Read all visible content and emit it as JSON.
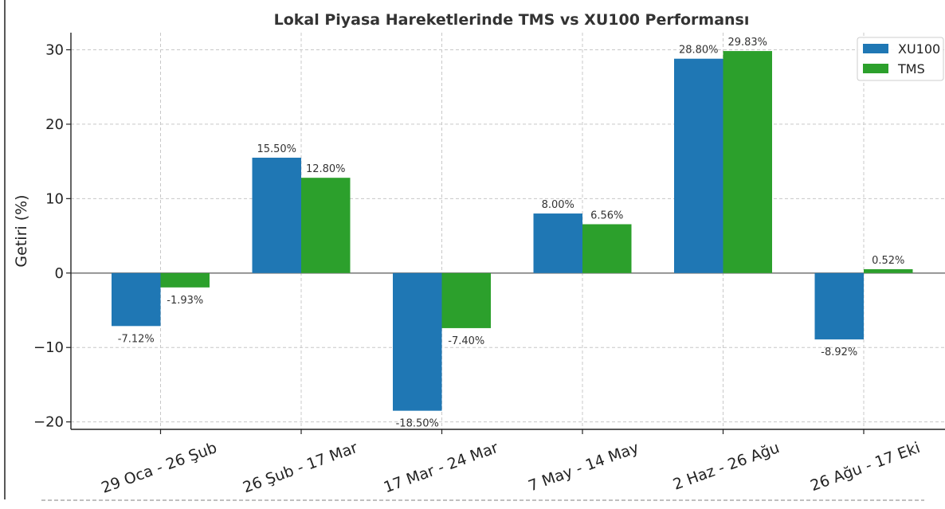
{
  "chart_data": {
    "type": "bar",
    "title": "Lokal Piyasa Hareketlerinde TMS vs XU100 Performansı",
    "xlabel": "",
    "ylabel": "Getiri (%)",
    "ylim": [
      -21,
      32.3
    ],
    "yticks": [
      -20,
      -10,
      0,
      10,
      20,
      30
    ],
    "grid": true,
    "legend_position": "top-right",
    "categories": [
      "29 Oca - 26 Şub",
      "26 Şub - 17 Mar",
      "17 Mar - 24 Mar",
      "7 May - 14 May",
      "2 Haz - 26 Ağu",
      "26 Ağu - 17 Eki"
    ],
    "series": [
      {
        "name": "XU100",
        "color": "#1f77b4",
        "values": [
          -7.12,
          15.5,
          -18.5,
          8.0,
          28.8,
          -8.92
        ],
        "labels": [
          "-7.12%",
          "15.50%",
          "-18.50%",
          "8.00%",
          "28.80%",
          "-8.92%"
        ]
      },
      {
        "name": "TMS",
        "color": "#2ca02c",
        "values": [
          -1.93,
          12.8,
          -7.4,
          6.56,
          29.83,
          0.52
        ],
        "labels": [
          "-1.93%",
          "12.80%",
          "-7.40%",
          "6.56%",
          "29.83%",
          "0.52%"
        ]
      }
    ]
  }
}
